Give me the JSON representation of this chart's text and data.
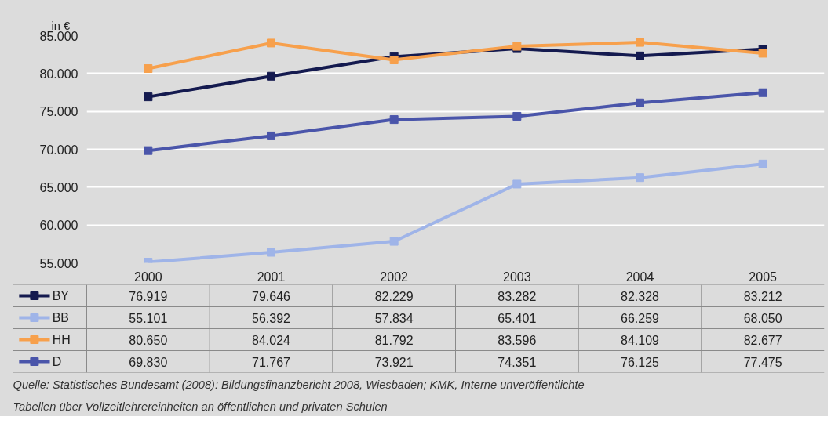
{
  "chart_data": {
    "type": "line",
    "ylabel": "in €",
    "categories": [
      "2000",
      "2001",
      "2002",
      "2003",
      "2004",
      "2005"
    ],
    "series": [
      {
        "name": "BY",
        "color": "#141a4f",
        "values": [
          76919,
          79646,
          82229,
          83282,
          82328,
          83212
        ],
        "value_labels": [
          "76.919",
          "79.646",
          "82.229",
          "83.282",
          "82.328",
          "83.212"
        ]
      },
      {
        "name": "BB",
        "color": "#9fb4e8",
        "values": [
          55101,
          56392,
          57834,
          65401,
          66259,
          68050
        ],
        "value_labels": [
          "55.101",
          "56.392",
          "57.834",
          "65.401",
          "66.259",
          "68.050"
        ]
      },
      {
        "name": "HH",
        "color": "#f7a04c",
        "values": [
          80650,
          84024,
          81792,
          83596,
          84109,
          82677
        ],
        "value_labels": [
          "80.650",
          "84.024",
          "81.792",
          "83.596",
          "84.109",
          "82.677"
        ]
      },
      {
        "name": "D",
        "color": "#4a55aa",
        "values": [
          69830,
          71767,
          73921,
          74351,
          76125,
          77475
        ],
        "value_labels": [
          "69.830",
          "71.767",
          "73.921",
          "74.351",
          "76.125",
          "77.475"
        ]
      }
    ],
    "ylim": [
      55000,
      85000
    ],
    "yticks": [
      {
        "value": 55000,
        "label": "55.000"
      },
      {
        "value": 60000,
        "label": "60.000"
      },
      {
        "value": 65000,
        "label": "65.000"
      },
      {
        "value": 70000,
        "label": "70.000"
      },
      {
        "value": 75000,
        "label": "75.000"
      },
      {
        "value": 80000,
        "label": "80.000"
      },
      {
        "value": 85000,
        "label": "85.000"
      }
    ],
    "grid": "y",
    "marker": "square",
    "line_style": "solid",
    "legend": "bottom left",
    "annotations": [
      "Quelle:  Statistisches Bundesamt (2008): Bildungsfinanzbericht 2008, Wiesbaden; KMK, Interne unveröffentlichte Tabellen über Vollzeitlehrereinheiten an öffentlichen und privaten Schulen"
    ]
  }
}
